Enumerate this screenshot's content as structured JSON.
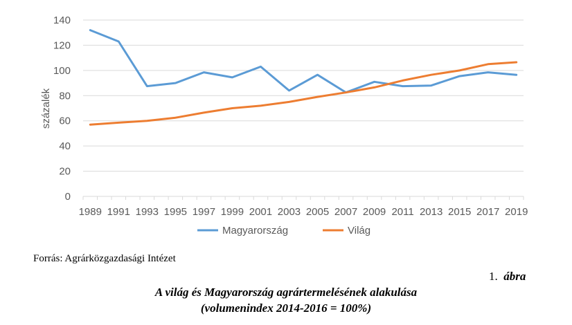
{
  "chart_data": {
    "type": "line",
    "ylabel": "százalék",
    "xlabel": "",
    "ylim": [
      0,
      140
    ],
    "yticks": [
      0,
      20,
      40,
      60,
      80,
      100,
      120,
      140
    ],
    "x": [
      1989,
      1990,
      1991,
      1992,
      1993,
      1994,
      1995,
      1996,
      1997,
      1998,
      1999,
      2000,
      2001,
      2002,
      2003,
      2004,
      2005,
      2006,
      2007,
      2008,
      2009,
      2010,
      2011,
      2012,
      2013,
      2014,
      2015,
      2016,
      2017,
      2018,
      2019
    ],
    "xticks": [
      "1989",
      "1991",
      "1993",
      "1995",
      "1997",
      "1999",
      "2001",
      "2003",
      "2005",
      "2007",
      "2009",
      "2011",
      "2013",
      "2015",
      "2017",
      "2019"
    ],
    "series": [
      {
        "name": "Magyarország",
        "color": "#5b9bd5",
        "points": [
          [
            1989,
            132
          ],
          [
            1991,
            123
          ],
          [
            1993,
            87.5
          ],
          [
            1995,
            90
          ],
          [
            1997,
            98.5
          ],
          [
            1999,
            94.5
          ],
          [
            2001,
            103
          ],
          [
            2003,
            84
          ],
          [
            2005,
            96.5
          ],
          [
            2007,
            82.5
          ],
          [
            2009,
            91
          ],
          [
            2011,
            87.5
          ],
          [
            2013,
            88
          ],
          [
            2015,
            95.5
          ],
          [
            2017,
            98.5
          ],
          [
            2019,
            96.5
          ]
        ]
      },
      {
        "name": "Világ",
        "color": "#ed7d31",
        "points": [
          [
            1989,
            57
          ],
          [
            1991,
            58.5
          ],
          [
            1993,
            60
          ],
          [
            1995,
            62.5
          ],
          [
            1997,
            66.5
          ],
          [
            1999,
            70
          ],
          [
            2001,
            72
          ],
          [
            2003,
            75
          ],
          [
            2005,
            79
          ],
          [
            2007,
            82.5
          ],
          [
            2009,
            86.5
          ],
          [
            2011,
            92
          ],
          [
            2013,
            96.5
          ],
          [
            2015,
            100
          ],
          [
            2017,
            105
          ],
          [
            2019,
            106.5
          ]
        ]
      }
    ],
    "legend": "bottom",
    "grid": true
  },
  "source": "Forrás: Agrárközgazdasági Intézet",
  "figure_number": "1.",
  "figure_word": "ábra",
  "caption_line1": "A világ és Magyarország agrártermelésének alakulása",
  "caption_line2": "(volumenindex 2014-2016 = 100%)"
}
